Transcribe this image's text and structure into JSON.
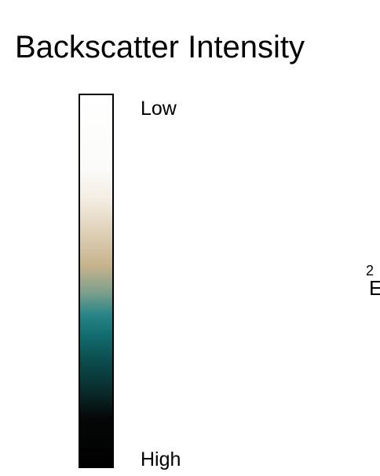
{
  "title": "Backscatter Intensity",
  "legend": {
    "low_label": "Low",
    "high_label": "High",
    "gradient_colors": [
      "#ffffff",
      "#f3ede2",
      "#c6b38d",
      "#2a8588",
      "#0b4a4c",
      "#000000"
    ]
  },
  "cropped_fragment": {
    "number": "2",
    "letter": "E"
  }
}
